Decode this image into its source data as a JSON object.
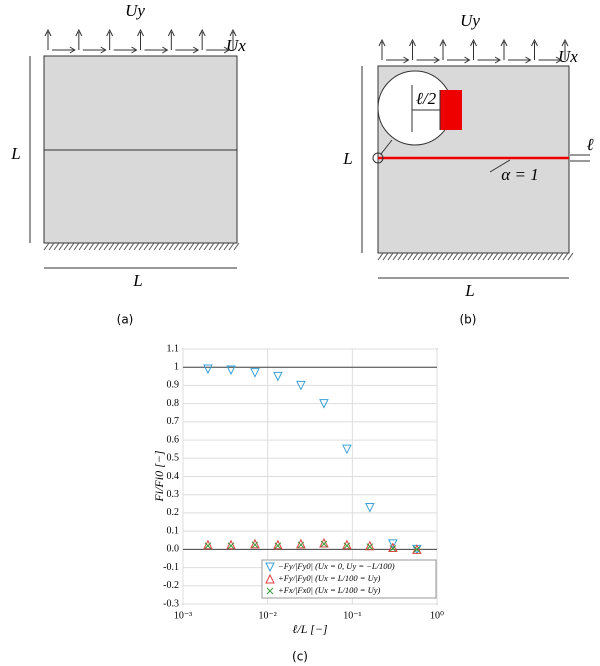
{
  "panel_a": {
    "top_label": "Uy",
    "right_label": "Ux",
    "side_label": "L",
    "bottom_label": "L",
    "caption": "(a)"
  },
  "panel_b": {
    "top_label": "Uy",
    "right_label": "Ux",
    "side_label": "L",
    "bottom_label": "L",
    "zoom_label": "ℓ/2",
    "crack_label": "α = 1",
    "width_label": "ℓ",
    "caption": "(b)"
  },
  "chart_data": {
    "type": "scatter",
    "caption": "(c)",
    "xlabel": "ℓ/L [−]",
    "ylabel": "Fi/Fi0 [−]",
    "x": [
      0.00197,
      0.00369,
      0.00708,
      0.0132,
      0.0247,
      0.0462,
      0.0863,
      0.161,
      0.301,
      0.578
    ],
    "xlog": true,
    "xlim": [
      0.001,
      1
    ],
    "xticks": [
      {
        "value": 0.001,
        "label": "10⁻³"
      },
      {
        "value": 0.01,
        "label": "10⁻²"
      },
      {
        "value": 0.1,
        "label": "10⁻¹"
      },
      {
        "value": 1,
        "label": "10⁰"
      }
    ],
    "ylim": [
      -0.3,
      1.1
    ],
    "yticks": [
      -0.3,
      -0.2,
      -0.1,
      {
        "value": 0,
        "label": "0.0"
      },
      0.1,
      0.2,
      0.3,
      0.4,
      0.5,
      0.6,
      0.7,
      0.8,
      0.9,
      1,
      1.1
    ],
    "grid": true,
    "reference_lines": [
      0,
      1
    ],
    "legend": "lower right",
    "series": [
      {
        "name": "−Fy/|Fy0|  (Ux = 0, Uy = −L/100)",
        "marker": "triangle-down",
        "color": "#3aa0d8",
        "values": [
          0.99,
          0.985,
          0.97,
          0.95,
          0.9,
          0.8,
          0.55,
          0.23,
          0.03,
          0.0
        ]
      },
      {
        "name": "+Fy/|Fy0|  (Ux = L/100 = Uy)",
        "marker": "triangle-up",
        "color": "#e04040",
        "values": [
          0.025,
          0.025,
          0.03,
          0.025,
          0.03,
          0.035,
          0.025,
          0.02,
          0.01,
          0.0
        ]
      },
      {
        "name": "+Fx/|Fx0|  (Ux = L/100 = Uy)",
        "marker": "x",
        "color": "#3a9a3a",
        "values": [
          0.02,
          0.02,
          0.025,
          0.02,
          0.025,
          0.03,
          0.02,
          0.015,
          0.005,
          0.0
        ]
      }
    ]
  }
}
